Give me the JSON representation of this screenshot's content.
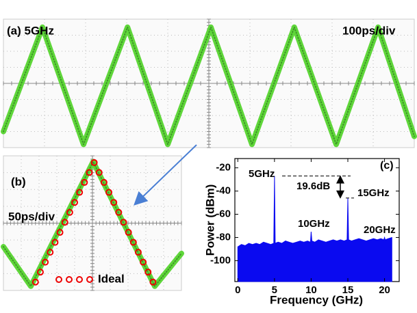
{
  "panel_a": {
    "label": "(a) 5GHz",
    "timebase": "100ps/div",
    "trace": {
      "x": [
        -5,
        -4.05,
        -3.05,
        -1.98,
        -1.0,
        0.05,
        1.05,
        2.08,
        3.1,
        4.12,
        5
      ],
      "y": [
        -3.0,
        3.5,
        -3.8,
        3.5,
        -3.8,
        3.5,
        -3.8,
        3.5,
        -3.8,
        3.5,
        -3.3
      ]
    }
  },
  "panel_b": {
    "label": "(b)",
    "timebase": "50ps/div",
    "legend": "Ideal",
    "trace": {
      "x": [
        -5,
        -3.46,
        0.04,
        3.5,
        5
      ],
      "y": [
        -1.4,
        -3.75,
        3.65,
        -3.75,
        -1.8
      ]
    },
    "ideal": {
      "x": [
        -3.2,
        -2.925,
        -2.65,
        -2.375,
        -2.1,
        -1.825,
        -1.55,
        -1.275,
        -1.0,
        -0.725,
        -0.45,
        -0.175,
        0.1,
        0.375,
        0.65,
        0.925,
        1.2,
        1.475,
        1.75,
        2.025,
        2.3,
        2.575,
        2.85,
        3.125,
        3.4
      ],
      "y": [
        -3.5,
        -2.91,
        -2.32,
        -1.73,
        -1.14,
        -0.55,
        0.05,
        0.64,
        1.23,
        1.83,
        2.42,
        3.01,
        3.6,
        3.01,
        2.42,
        1.83,
        1.23,
        0.64,
        0.05,
        -0.55,
        -1.14,
        -1.73,
        -2.32,
        -2.91,
        -3.5
      ]
    }
  },
  "chart_data": {
    "type": "area",
    "label": "(c)",
    "xlabel": "Frequency (GHz)",
    "ylabel": "Power (dBm)",
    "x": [
      0,
      0.5,
      1,
      1.5,
      2,
      2.5,
      3,
      3.5,
      4,
      4.5,
      4.9,
      5,
      5.1,
      5.5,
      6,
      6.5,
      7,
      7.5,
      8,
      8.5,
      9,
      9.5,
      9.9,
      10,
      10.1,
      10.5,
      11,
      11.5,
      12,
      12.5,
      13,
      13.5,
      14,
      14.5,
      14.9,
      15,
      15.1,
      15.5,
      16,
      16.5,
      17,
      17.5,
      18,
      18.5,
      19,
      19.5,
      19.9,
      20,
      20.1,
      20.5,
      21
    ],
    "values": [
      -88,
      -86,
      -87,
      -85,
      -86,
      -85,
      -86,
      -84,
      -85,
      -86,
      -85,
      -27,
      -85,
      -84,
      -85,
      -83,
      -84,
      -85,
      -84,
      -83,
      -84,
      -83,
      -84,
      -75,
      -83,
      -84,
      -82,
      -83,
      -84,
      -83,
      -82,
      -83,
      -82,
      -83,
      -82,
      -46,
      -82,
      -83,
      -82,
      -81,
      -82,
      -83,
      -82,
      -81,
      -82,
      -81,
      -82,
      -80,
      -82,
      -81,
      -80
    ],
    "color": "#0a0af0",
    "xlim": [
      -0.4,
      22
    ],
    "ylim": [
      -118,
      -12
    ],
    "xticks": [
      0,
      5,
      10,
      15,
      20
    ],
    "yticks": [
      -20,
      -40,
      -60,
      -80,
      -100
    ],
    "annotations": [
      "5GHz",
      "10GHz",
      "15GHz",
      "20GHz",
      "19.6dB"
    ]
  }
}
